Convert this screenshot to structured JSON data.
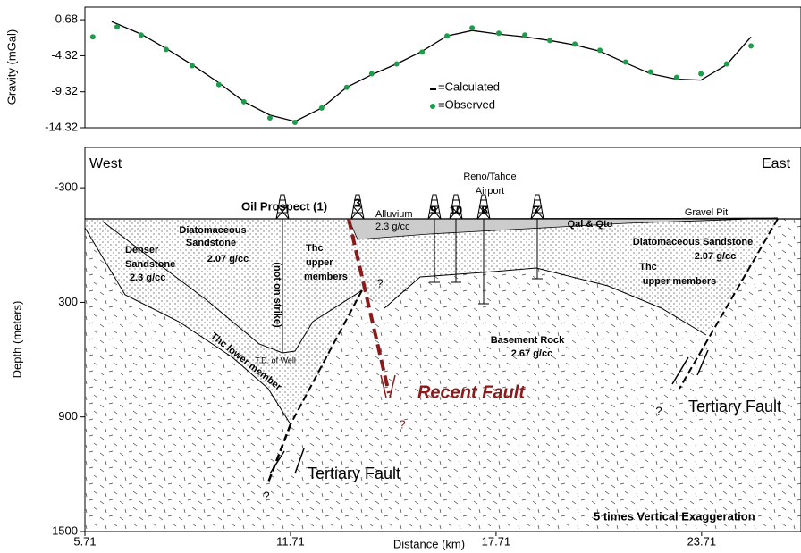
{
  "chart_data": [
    {
      "type": "line",
      "ylabel": "Gravity (mGal)",
      "xlim": [
        5.71,
        26.61
      ],
      "ylim": [
        -14.32,
        2.43
      ],
      "yticks": [
        0.68,
        -4.32,
        -9.32,
        -14.32
      ],
      "series": [
        {
          "name": "=Calculated",
          "type": "line",
          "color": "#000000",
          "x": [
            6.49,
            7.35,
            8.08,
            8.84,
            9.62,
            10.35,
            11.11,
            11.84,
            12.62,
            13.35,
            14.08,
            14.81,
            15.55,
            16.28,
            17.01,
            17.79,
            18.55,
            19.28,
            20.01,
            20.74,
            21.49,
            22.22,
            22.98,
            23.69,
            24.44,
            25.15
          ],
          "values": [
            0.43,
            -1.32,
            -3.32,
            -5.57,
            -8.07,
            -10.7,
            -12.57,
            -13.45,
            -11.57,
            -8.7,
            -6.95,
            -5.45,
            -3.7,
            -1.57,
            -0.82,
            -1.32,
            -1.7,
            -2.2,
            -2.82,
            -3.7,
            -5.32,
            -6.82,
            -7.57,
            -7.7,
            -5.57,
            -1.7
          ]
        },
        {
          "name": "=Observed",
          "type": "scatter",
          "color": "#1a9e4a",
          "x": [
            5.94,
            6.65,
            7.35,
            8.08,
            8.84,
            9.62,
            10.35,
            11.11,
            11.84,
            12.62,
            13.35,
            14.08,
            14.81,
            15.55,
            16.28,
            17.01,
            17.79,
            18.55,
            19.28,
            20.01,
            20.74,
            21.49,
            22.22,
            22.98,
            23.69,
            24.44,
            25.15
          ],
          "values": [
            -1.7,
            -0.32,
            -1.45,
            -3.45,
            -5.7,
            -8.32,
            -10.7,
            -12.95,
            -13.57,
            -11.57,
            -8.7,
            -6.82,
            -5.45,
            -3.82,
            -1.57,
            -0.45,
            -1.2,
            -1.45,
            -2.2,
            -2.7,
            -3.57,
            -5.2,
            -6.57,
            -7.32,
            -6.82,
            -5.45,
            -2.95
          ]
        }
      ]
    },
    {
      "type": "section",
      "xlabel": "Distance (km)",
      "ylabel": "Depth (meters)",
      "xlim": [
        5.71,
        26.61
      ],
      "xticks": [
        5.71,
        11.71,
        17.71,
        23.71
      ],
      "ylim": [
        1500,
        -511
      ],
      "yticks": [
        -300,
        300,
        900,
        1500
      ],
      "annotations": [
        "West",
        "East",
        "Oil Prospect (1)",
        "3",
        "9",
        "10",
        "8",
        "7",
        "Reno/Tahoe",
        "Airport",
        "Alluvium",
        "2.3 g/cc",
        "Qal & Qto",
        "Gravel Pit",
        "Diatomaceous",
        "Sandstone",
        "2.07 g/cc",
        "Denser",
        "Sandstone",
        "2.3 g/cc",
        "Thc",
        "upper",
        "members",
        "(not on strike)",
        "T.D. of Well",
        "Thc lower member",
        "?",
        "Basement Rock",
        "2.67 g/cc",
        "Recent Fault",
        "?",
        "Diatomaceous Sandstone",
        "2.07 g/cc",
        "Thc",
        "upper members",
        "Tertiary Fault",
        "?",
        "Tertiary Fault",
        "?",
        "5 times Vertical Exaggeration"
      ]
    }
  ]
}
